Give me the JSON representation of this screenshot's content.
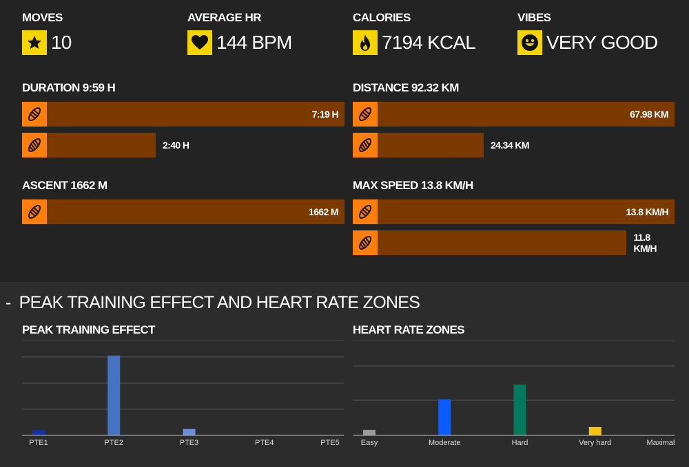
{
  "kpis": [
    {
      "label": "MOVES",
      "value": "10",
      "icon": "star-icon"
    },
    {
      "label": "AVERAGE HR",
      "value": "144 BPM",
      "icon": "heart-icon"
    },
    {
      "label": "CALORIES",
      "value": "7194 KCAL",
      "icon": "flame-icon"
    },
    {
      "label": "VIBES",
      "value": "VERY GOOD",
      "icon": "smiley-icon"
    }
  ],
  "duration": {
    "title": "DURATION 9:59 H",
    "bars": [
      {
        "label": "7:19 H",
        "fraction": 1.0,
        "icon": "running-shoe-icon"
      },
      {
        "label": "2:40 H",
        "fraction": 0.365,
        "icon": "trail-shoe-icon"
      }
    ]
  },
  "distance": {
    "title": "DISTANCE 92.32 KM",
    "bars": [
      {
        "label": "67.98 KM",
        "fraction": 1.0,
        "icon": "running-shoe-icon"
      },
      {
        "label": "24.34 KM",
        "fraction": 0.358,
        "icon": "trail-shoe-icon"
      }
    ]
  },
  "ascent": {
    "title": "ASCENT 1662 M",
    "bars": [
      {
        "label": "1662 M",
        "fraction": 1.0,
        "icon": "running-shoe-icon"
      }
    ]
  },
  "max_speed": {
    "title": "MAX SPEED 13.8 KM/H",
    "bars": [
      {
        "label": "13.8 KM/H",
        "fraction": 1.0,
        "icon": "running-shoe-icon"
      },
      {
        "label": "11.8 KM/H",
        "fraction": 0.855,
        "icon": "trail-shoe-icon"
      }
    ]
  },
  "section": {
    "collapse_symbol": "-",
    "title": "PEAK TRAINING EFFECT AND HEART RATE ZONES"
  },
  "colors": {
    "kpi_icon_bg": "#f5d400",
    "bar_icon_bg": "#ff7f0e",
    "bar_fill": "#7a3a00"
  },
  "chart_data": [
    {
      "type": "bar",
      "title": "PEAK TRAINING EFFECT",
      "categories": [
        "PTE1",
        "PTE2",
        "PTE3",
        "PTE4",
        "PTE5"
      ],
      "values": [
        0.7,
        10,
        0.8,
        0,
        0
      ],
      "colors": [
        "#1533a6",
        "#4672c4",
        "#6c8fdc",
        "#6c8fdc",
        "#6c8fdc"
      ],
      "ylim": [
        0,
        10
      ],
      "grid": true
    },
    {
      "type": "bar",
      "title": "HEART RATE ZONES",
      "categories": [
        "Easy",
        "Moderate",
        "Hard",
        "Very hard",
        "Maximal"
      ],
      "values": [
        0.8,
        5.2,
        7.3,
        1.2,
        0
      ],
      "colors": [
        "#9a9a9a",
        "#0b5cff",
        "#047a5c",
        "#f5c311",
        "#e03030"
      ],
      "ylim": [
        0,
        10
      ],
      "grid": true
    }
  ]
}
